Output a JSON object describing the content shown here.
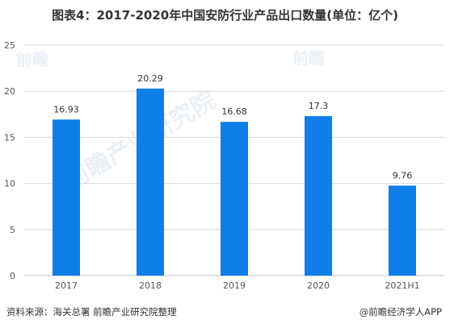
{
  "title": "图表4：2017-2020年中国安防行业产品出口数量(单位：亿个)",
  "footer": {
    "source": "资料来源：海关总署 前瞻产业研究院整理",
    "brand": "@前瞻经济学人APP"
  },
  "watermarks": {
    "logo_text": "前瞻产业研究院",
    "logo_short": "前瞻"
  },
  "colors": {
    "bar": "#0f7ee8",
    "grid": "#d9d9d9",
    "axis_text": "#555555",
    "label_text": "#333333"
  },
  "chart_data": {
    "type": "bar",
    "title": "图表4：2017-2020年中国安防行业产品出口数量(单位：亿个)",
    "xlabel": "",
    "ylabel": "",
    "categories": [
      "2017",
      "2018",
      "2019",
      "2020",
      "2021H1"
    ],
    "values": [
      16.93,
      20.29,
      16.68,
      17.3,
      9.76
    ],
    "value_labels": [
      "16.93",
      "20.29",
      "16.68",
      "17.3",
      "9.76"
    ],
    "ylim": [
      0,
      25
    ],
    "yticks": [
      0,
      5,
      10,
      15,
      20,
      25
    ],
    "grid": true,
    "legend": "none"
  }
}
